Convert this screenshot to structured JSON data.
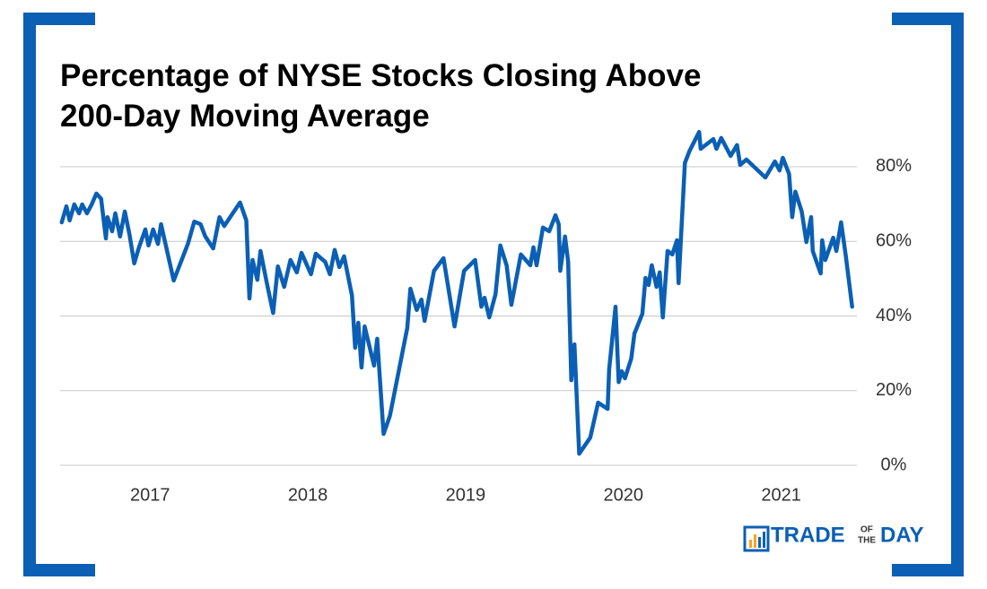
{
  "chart_data": {
    "type": "line",
    "title": [
      "Percentage of NYSE Stocks Closing Above",
      "200-Day Moving Average"
    ],
    "x": [
      2016.44,
      2016.47,
      2016.49,
      2016.52,
      2016.55,
      2016.57,
      2016.6,
      2016.63,
      2016.66,
      2016.69,
      2016.72,
      2016.73,
      2016.76,
      2016.78,
      2016.81,
      2016.84,
      2016.87,
      2016.9,
      2016.93,
      2016.97,
      2016.99,
      2017.02,
      2017.05,
      2017.07,
      2017.15,
      2017.24,
      2017.28,
      2017.32,
      2017.35,
      2017.4,
      2017.44,
      2017.47,
      2017.57,
      2017.61,
      2017.63,
      2017.65,
      2017.68,
      2017.7,
      2017.74,
      2017.78,
      2017.81,
      2017.85,
      2017.89,
      2017.93,
      2017.96,
      2018.02,
      2018.05,
      2018.11,
      2018.14,
      2018.17,
      2018.2,
      2018.23,
      2018.28,
      2018.3,
      2018.32,
      2018.34,
      2018.36,
      2018.42,
      2018.44,
      2018.48,
      2018.52,
      2018.63,
      2018.65,
      2018.69,
      2018.72,
      2018.74,
      2018.8,
      2018.86,
      2018.93,
      2018.99,
      2019.06,
      2019.1,
      2019.12,
      2019.15,
      2019.19,
      2019.22,
      2019.26,
      2019.29,
      2019.35,
      2019.41,
      2019.43,
      2019.45,
      2019.49,
      2019.53,
      2019.57,
      2019.59,
      2019.6,
      2019.63,
      2019.65,
      2019.67,
      2019.69,
      2019.72,
      2019.79,
      2019.84,
      2019.9,
      2019.91,
      2019.95,
      2019.97,
      2019.99,
      2020.01,
      2020.05,
      2020.07,
      2020.12,
      2020.14,
      2020.16,
      2020.18,
      2020.21,
      2020.23,
      2020.25,
      2020.28,
      2020.31,
      2020.34,
      2020.35,
      2020.39,
      2020.42,
      2020.48,
      2020.49,
      2020.57,
      2020.59,
      2020.62,
      2020.68,
      2020.72,
      2020.74,
      2020.78,
      2020.9,
      2020.96,
      2020.99,
      2021.01,
      2021.05,
      2021.07,
      2021.09,
      2021.13,
      2021.16,
      2021.19,
      2021.2,
      2021.25,
      2021.26,
      2021.28,
      2021.33,
      2021.35,
      2021.38,
      2021.41,
      2021.45
    ],
    "series": [
      {
        "color": "#0b5fb5",
        "values": [
          65.1,
          69.4,
          65.6,
          69.9,
          67.5,
          69.9,
          67.5,
          69.9,
          72.8,
          71.4,
          60.8,
          66.5,
          62.7,
          67.5,
          61.3,
          68,
          61.7,
          54.1,
          58.4,
          63.2,
          58.9,
          63.2,
          59.3,
          64.6,
          49.5,
          59.3,
          65.3,
          64.6,
          61.3,
          58.1,
          66.5,
          64.1,
          70.4,
          65.6,
          44.7,
          55,
          49.7,
          57.4,
          48.8,
          40.8,
          53.3,
          47.8,
          55,
          51.7,
          56.9,
          51.2,
          56.7,
          54.5,
          51.2,
          57.7,
          53.1,
          56,
          45.4,
          31.5,
          38.2,
          26.2,
          37.2,
          26.7,
          33.9,
          8.4,
          13.2,
          36.8,
          47.3,
          41.6,
          44.4,
          38.7,
          52.1,
          55.5,
          37.2,
          52.1,
          55,
          42.5,
          44.9,
          39.6,
          45.9,
          58.9,
          53.6,
          43,
          56.5,
          53.6,
          58.4,
          53.6,
          63.7,
          62.7,
          67,
          64.6,
          52.1,
          61.3,
          54.5,
          22.8,
          32.4,
          3.1,
          7.4,
          16.8,
          15.1,
          25.7,
          42.5,
          22.3,
          25.2,
          23.3,
          28.6,
          35.3,
          40.6,
          50.2,
          48.3,
          53.6,
          47.8,
          51.7,
          39.6,
          57.4,
          56.5,
          60.3,
          48.8,
          81,
          84.3,
          89.3,
          84.8,
          87.4,
          84.8,
          87.7,
          82.9,
          85.8,
          80.5,
          81.9,
          77.1,
          81.4,
          79,
          82.4,
          78.1,
          66.5,
          73.3,
          68,
          59.8,
          66.5,
          57.4,
          51.4,
          60.3,
          55,
          61,
          57.4,
          65.1,
          56,
          42.5
        ]
      }
    ],
    "xlim": [
      2016.43,
      2021.48
    ],
    "xticks": [
      2017,
      2018,
      2019,
      2020,
      2021
    ],
    "ylim": [
      0,
      92
    ],
    "yticks": [
      {
        "value": 0,
        "label": "0%"
      },
      {
        "value": 20,
        "label": "20%"
      },
      {
        "value": 40,
        "label": "40%"
      },
      {
        "value": 60,
        "label": "60%"
      },
      {
        "value": 80,
        "label": "80%"
      }
    ],
    "grid": true
  },
  "logo": {
    "main": "TRADE",
    "small_top": "OF",
    "small_bottom": "THE",
    "end": "DAY"
  }
}
